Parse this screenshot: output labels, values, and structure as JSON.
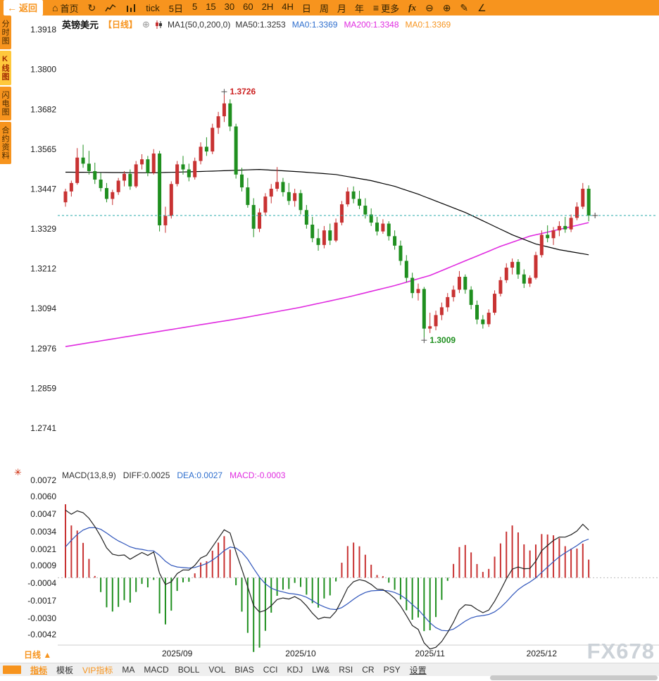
{
  "toolbar": {
    "back": "返回",
    "home": "首页",
    "tick": "tick",
    "five_day": "5日",
    "intervals": [
      "5",
      "15",
      "30",
      "60",
      "2H",
      "4H",
      "日",
      "周",
      "月",
      "年"
    ],
    "more": "更多",
    "fx": "fx"
  },
  "sidebar": {
    "items": [
      {
        "label": "分时图",
        "active": false
      },
      {
        "label": "K线图",
        "active": true
      },
      {
        "label": "闪电图",
        "active": false
      },
      {
        "label": "合约资料",
        "active": false
      }
    ]
  },
  "chart_header": {
    "symbol": "英镑美元",
    "period": "【日线】",
    "ma_settings": "MA1(50,0,200,0)",
    "ma_values": [
      {
        "text": "MA50:1.3253",
        "color": "#333333"
      },
      {
        "text": "MA0:1.3369",
        "color": "#2f6fce"
      },
      {
        "text": "MA200:1.3348",
        "color": "#e02ce0"
      },
      {
        "text": "MA0:1.3369",
        "color": "#f7941e"
      }
    ]
  },
  "macd_header": {
    "items": [
      {
        "text": "MACD(13,8,9)",
        "color": "#333333"
      },
      {
        "text": "DIFF:0.0025",
        "color": "#333333"
      },
      {
        "text": "DEA:0.0027",
        "color": "#2f6fce"
      },
      {
        "text": "MACD:-0.0003",
        "color": "#e02ce0"
      }
    ]
  },
  "annotations": {
    "high": "1.3726",
    "low": "1.3009"
  },
  "bottom": {
    "period_label": "日线",
    "period_arrow": "▲",
    "tabs": [
      {
        "label": "指标",
        "style": "active"
      },
      {
        "label": "模板",
        "style": "normal"
      },
      {
        "label": "VIP指标",
        "style": "vip"
      },
      {
        "label": "MA",
        "style": "normal"
      },
      {
        "label": "MACD",
        "style": "normal"
      },
      {
        "label": "BOLL",
        "style": "normal"
      },
      {
        "label": "VOL",
        "style": "normal"
      },
      {
        "label": "BIAS",
        "style": "normal"
      },
      {
        "label": "CCI",
        "style": "normal"
      },
      {
        "label": "KDJ",
        "style": "normal"
      },
      {
        "label": "LW&",
        "style": "normal"
      },
      {
        "label": "RSI",
        "style": "normal"
      },
      {
        "label": "CR",
        "style": "normal"
      },
      {
        "label": "PSY",
        "style": "normal"
      },
      {
        "label": "设置",
        "style": "settings"
      }
    ],
    "watermark": "FX678"
  },
  "chart_data": {
    "type": "candlestick+macd",
    "symbol": "英镑美元 (GBP/USD)",
    "period": "日线",
    "current_price": 1.3369,
    "high_annotation": 1.3726,
    "low_annotation": 1.3009,
    "price_axis": {
      "max": 1.3918,
      "min": 1.2741,
      "ticks": [
        "1.3918",
        "1.3800",
        "1.3682",
        "1.3565",
        "1.3447",
        "1.3329",
        "1.3212",
        "1.3094",
        "1.2976",
        "1.2859",
        "1.2741"
      ]
    },
    "macd_axis": {
      "max": 0.0072,
      "min": -0.0042,
      "ticks": [
        "0.0072",
        "0.0060",
        "0.0047",
        "0.0034",
        "0.0021",
        "0.0009",
        "-0.0004",
        "-0.0017",
        "-0.0030",
        "-0.0042"
      ]
    },
    "x_axis": {
      "months": [
        {
          "label": "2025/09",
          "i": 19
        },
        {
          "label": "2025/10",
          "i": 40
        },
        {
          "label": "2025/11",
          "i": 62
        },
        {
          "label": "2025/12",
          "i": 81
        }
      ]
    },
    "candles": [
      [
        1.3408,
        1.3448,
        1.3395,
        1.344
      ],
      [
        1.344,
        1.3472,
        1.3425,
        1.3465
      ],
      [
        1.3465,
        1.3568,
        1.346,
        1.354
      ],
      [
        1.354,
        1.3578,
        1.351,
        1.3522
      ],
      [
        1.3522,
        1.356,
        1.349,
        1.35
      ],
      [
        1.35,
        1.3525,
        1.3462,
        1.3475
      ],
      [
        1.3475,
        1.3495,
        1.344,
        1.345
      ],
      [
        1.345,
        1.3465,
        1.3408,
        1.3418
      ],
      [
        1.3418,
        1.3445,
        1.34,
        1.3438
      ],
      [
        1.3438,
        1.348,
        1.343,
        1.3472
      ],
      [
        1.3472,
        1.35,
        1.3455,
        1.3492
      ],
      [
        1.3492,
        1.3505,
        1.3445,
        1.3455
      ],
      [
        1.3455,
        1.353,
        1.345,
        1.352
      ],
      [
        1.352,
        1.355,
        1.3505,
        1.3535
      ],
      [
        1.3535,
        1.3545,
        1.3485,
        1.3495
      ],
      [
        1.3495,
        1.3565,
        1.349,
        1.3552
      ],
      [
        1.3552,
        1.356,
        1.3322,
        1.334
      ],
      [
        1.334,
        1.3395,
        1.3318,
        1.3368
      ],
      [
        1.3368,
        1.347,
        1.336,
        1.3462
      ],
      [
        1.3462,
        1.353,
        1.3455,
        1.352
      ],
      [
        1.352,
        1.3545,
        1.349,
        1.3505
      ],
      [
        1.3505,
        1.3522,
        1.347,
        1.3482
      ],
      [
        1.3482,
        1.354,
        1.3475,
        1.353
      ],
      [
        1.353,
        1.3585,
        1.352,
        1.3572
      ],
      [
        1.3572,
        1.36,
        1.3545,
        1.3558
      ],
      [
        1.3558,
        1.364,
        1.355,
        1.3628
      ],
      [
        1.3628,
        1.3675,
        1.361,
        1.3662
      ],
      [
        1.3662,
        1.3726,
        1.3645,
        1.37
      ],
      [
        1.37,
        1.3712,
        1.3618,
        1.3632
      ],
      [
        1.3632,
        1.364,
        1.3478,
        1.349
      ],
      [
        1.349,
        1.351,
        1.344,
        1.3452
      ],
      [
        1.3452,
        1.348,
        1.3392,
        1.34
      ],
      [
        1.34,
        1.342,
        1.3305,
        1.333
      ],
      [
        1.333,
        1.339,
        1.332,
        1.3378
      ],
      [
        1.3378,
        1.3435,
        1.337,
        1.3425
      ],
      [
        1.3425,
        1.3462,
        1.3405,
        1.3448
      ],
      [
        1.3448,
        1.3512,
        1.344,
        1.3468
      ],
      [
        1.3468,
        1.348,
        1.3425,
        1.3438
      ],
      [
        1.3438,
        1.3465,
        1.34,
        1.3412
      ],
      [
        1.3412,
        1.3448,
        1.3395,
        1.3435
      ],
      [
        1.3435,
        1.3445,
        1.3372,
        1.3385
      ],
      [
        1.3385,
        1.34,
        1.333,
        1.3342
      ],
      [
        1.3342,
        1.3365,
        1.329,
        1.3302
      ],
      [
        1.3302,
        1.333,
        1.3265,
        1.3282
      ],
      [
        1.3282,
        1.3338,
        1.3272,
        1.3325
      ],
      [
        1.3325,
        1.3345,
        1.3282,
        1.3295
      ],
      [
        1.3295,
        1.336,
        1.329,
        1.3348
      ],
      [
        1.3348,
        1.3412,
        1.334,
        1.3402
      ],
      [
        1.3402,
        1.3452,
        1.3395,
        1.344
      ],
      [
        1.344,
        1.3455,
        1.3405,
        1.3418
      ],
      [
        1.3418,
        1.3442,
        1.3388,
        1.3398
      ],
      [
        1.3398,
        1.342,
        1.336,
        1.3372
      ],
      [
        1.3372,
        1.339,
        1.3338,
        1.3348
      ],
      [
        1.3348,
        1.3365,
        1.331,
        1.3322
      ],
      [
        1.3322,
        1.3358,
        1.3315,
        1.3345
      ],
      [
        1.3345,
        1.3352,
        1.3295,
        1.3308
      ],
      [
        1.3308,
        1.3325,
        1.3268,
        1.328
      ],
      [
        1.328,
        1.3295,
        1.3222,
        1.3235
      ],
      [
        1.3235,
        1.3252,
        1.3172,
        1.3185
      ],
      [
        1.3185,
        1.32,
        1.3125,
        1.314
      ],
      [
        1.314,
        1.3168,
        1.3118,
        1.3152
      ],
      [
        1.3152,
        1.3158,
        1.3009,
        1.3035
      ],
      [
        1.3035,
        1.3082,
        1.3022,
        1.3042
      ],
      [
        1.3042,
        1.3088,
        1.303,
        1.3075
      ],
      [
        1.3075,
        1.3112,
        1.306,
        1.3098
      ],
      [
        1.3098,
        1.314,
        1.3085,
        1.3128
      ],
      [
        1.3128,
        1.3162,
        1.3115,
        1.315
      ],
      [
        1.315,
        1.3205,
        1.314,
        1.3188
      ],
      [
        1.3188,
        1.3195,
        1.3138,
        1.315
      ],
      [
        1.315,
        1.316,
        1.3092,
        1.3105
      ],
      [
        1.3105,
        1.3118,
        1.3048,
        1.3062
      ],
      [
        1.3062,
        1.3075,
        1.3035,
        1.3048
      ],
      [
        1.3048,
        1.3092,
        1.304,
        1.3082
      ],
      [
        1.3082,
        1.3148,
        1.3075,
        1.3138
      ],
      [
        1.3138,
        1.3188,
        1.313,
        1.3178
      ],
      [
        1.3178,
        1.3228,
        1.317,
        1.3215
      ],
      [
        1.3215,
        1.3242,
        1.3195,
        1.3232
      ],
      [
        1.3232,
        1.324,
        1.3182,
        1.3195
      ],
      [
        1.3195,
        1.321,
        1.3155,
        1.3168
      ],
      [
        1.3168,
        1.3192,
        1.3158,
        1.3185
      ],
      [
        1.3185,
        1.3262,
        1.318,
        1.3252
      ],
      [
        1.3252,
        1.3325,
        1.3245,
        1.3312
      ],
      [
        1.3312,
        1.334,
        1.329,
        1.3302
      ],
      [
        1.3302,
        1.3335,
        1.3282,
        1.3325
      ],
      [
        1.3325,
        1.3352,
        1.3308,
        1.3338
      ],
      [
        1.3338,
        1.3365,
        1.3318,
        1.3328
      ],
      [
        1.3328,
        1.3372,
        1.332,
        1.3362
      ],
      [
        1.3362,
        1.3408,
        1.3355,
        1.3395
      ],
      [
        1.3395,
        1.3465,
        1.3388,
        1.3448
      ],
      [
        1.3448,
        1.3458,
        1.3352,
        1.3369
      ]
    ],
    "ma50_points": [
      [
        0,
        1.3497
      ],
      [
        15,
        1.3495
      ],
      [
        25,
        1.35
      ],
      [
        33,
        1.3505
      ],
      [
        40,
        1.3498
      ],
      [
        46,
        1.349
      ],
      [
        52,
        1.3472
      ],
      [
        56,
        1.3455
      ],
      [
        60,
        1.3432
      ],
      [
        64,
        1.3405
      ],
      [
        68,
        1.3378
      ],
      [
        72,
        1.3345
      ],
      [
        76,
        1.3312
      ],
      [
        80,
        1.3285
      ],
      [
        84,
        1.3268
      ],
      [
        89,
        1.3253
      ]
    ],
    "ma200_points": [
      [
        0,
        1.2982
      ],
      [
        10,
        1.301
      ],
      [
        20,
        1.3038
      ],
      [
        30,
        1.3066
      ],
      [
        40,
        1.3098
      ],
      [
        48,
        1.3128
      ],
      [
        56,
        1.3162
      ],
      [
        62,
        1.3192
      ],
      [
        68,
        1.3235
      ],
      [
        74,
        1.3278
      ],
      [
        79,
        1.3308
      ],
      [
        84,
        1.3328
      ],
      [
        89,
        1.3348
      ]
    ],
    "macd_params": {
      "fast": 8,
      "slow": 13,
      "signal": 9
    },
    "macd_init": {
      "ema_fast": 1.3405,
      "ema_slow": 1.335,
      "dea": 0.0016
    },
    "colors": {
      "up": "#c83232",
      "down": "#1f8f1f",
      "ma50": "#000000",
      "ma200": "#e02ce0",
      "diff": "#222222",
      "dea": "#2f55bb",
      "current_line": "#2aabab",
      "accent": "#f7941e"
    }
  }
}
